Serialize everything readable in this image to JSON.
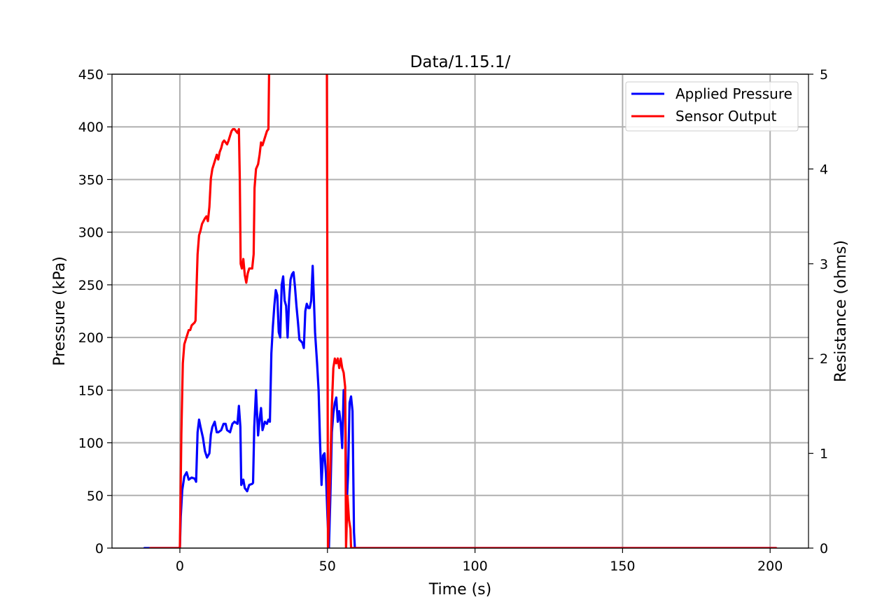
{
  "chart_data": {
    "type": "line",
    "title": "Data/1.15.1/",
    "xlabel": "Time (s)",
    "ylabel": "Pressure (kPa)",
    "y2label": "Resistance (ohms)",
    "xlim": [
      -23,
      213
    ],
    "ylim": [
      0,
      450
    ],
    "y2lim": [
      0,
      5
    ],
    "xticks": [
      0,
      50,
      100,
      150,
      200
    ],
    "yticks": [
      0,
      50,
      100,
      150,
      200,
      250,
      300,
      350,
      400,
      450
    ],
    "y2ticks": [
      0,
      1,
      2,
      3,
      4,
      5
    ],
    "grid": true,
    "legend_position": "top-right",
    "series": [
      {
        "name": "Applied Pressure",
        "axis": "left",
        "color": "#0000ff",
        "points": [
          [
            -12,
            0
          ],
          [
            0,
            0
          ],
          [
            0.3,
            30
          ],
          [
            0.8,
            55
          ],
          [
            1.5,
            68
          ],
          [
            2.3,
            72
          ],
          [
            3,
            65
          ],
          [
            4,
            67
          ],
          [
            5,
            66
          ],
          [
            5.5,
            63
          ],
          [
            6,
            110
          ],
          [
            6.5,
            122
          ],
          [
            7,
            115
          ],
          [
            7.8,
            105
          ],
          [
            8.5,
            92
          ],
          [
            9.2,
            86
          ],
          [
            10,
            90
          ],
          [
            10.5,
            108
          ],
          [
            11,
            115
          ],
          [
            11.8,
            120
          ],
          [
            12.5,
            110
          ],
          [
            13,
            110
          ],
          [
            14,
            112
          ],
          [
            14.8,
            118
          ],
          [
            15.5,
            118
          ],
          [
            16,
            112
          ],
          [
            17,
            110
          ],
          [
            17.8,
            118
          ],
          [
            18.5,
            120
          ],
          [
            19.5,
            118
          ],
          [
            20,
            135
          ],
          [
            20.5,
            115
          ],
          [
            20.8,
            60
          ],
          [
            21.5,
            65
          ],
          [
            22,
            57
          ],
          [
            22.8,
            54
          ],
          [
            23.5,
            60
          ],
          [
            24.5,
            61
          ],
          [
            24.8,
            62
          ],
          [
            25.2,
            115
          ],
          [
            25.8,
            150
          ],
          [
            26.2,
            125
          ],
          [
            26.5,
            107
          ],
          [
            27,
            122
          ],
          [
            27.5,
            133
          ],
          [
            28,
            112
          ],
          [
            28.8,
            120
          ],
          [
            29.5,
            118
          ],
          [
            30,
            122
          ],
          [
            30.5,
            120
          ],
          [
            31,
            185
          ],
          [
            31.5,
            210
          ],
          [
            32,
            230
          ],
          [
            32.5,
            245
          ],
          [
            33,
            240
          ],
          [
            33.5,
            205
          ],
          [
            34,
            200
          ],
          [
            34.5,
            250
          ],
          [
            35,
            258
          ],
          [
            35.5,
            235
          ],
          [
            36,
            230
          ],
          [
            36.5,
            200
          ],
          [
            37,
            235
          ],
          [
            37.5,
            255
          ],
          [
            38,
            260
          ],
          [
            38.5,
            262
          ],
          [
            39,
            248
          ],
          [
            39.5,
            230
          ],
          [
            40,
            215
          ],
          [
            40.5,
            198
          ],
          [
            41.5,
            195
          ],
          [
            42,
            190
          ],
          [
            42.5,
            225
          ],
          [
            43,
            232
          ],
          [
            43.5,
            228
          ],
          [
            44,
            228
          ],
          [
            44.5,
            235
          ],
          [
            45,
            268
          ],
          [
            45.3,
            245
          ],
          [
            45.8,
            205
          ],
          [
            46.5,
            175
          ],
          [
            47,
            150
          ],
          [
            47.5,
            100
          ],
          [
            48,
            60
          ],
          [
            48.5,
            88
          ],
          [
            49,
            90
          ],
          [
            49.5,
            70
          ],
          [
            50,
            30
          ],
          [
            50.5,
            0
          ],
          [
            51,
            50
          ],
          [
            51.5,
            110
          ],
          [
            52,
            128
          ],
          [
            52.5,
            138
          ],
          [
            53,
            143
          ],
          [
            53.5,
            120
          ],
          [
            54,
            130
          ],
          [
            54.5,
            118
          ],
          [
            55,
            95
          ],
          [
            55.5,
            150
          ],
          [
            56,
            140
          ],
          [
            56.5,
            40
          ],
          [
            57,
            70
          ],
          [
            57.5,
            138
          ],
          [
            58,
            144
          ],
          [
            58.5,
            130
          ],
          [
            59,
            15
          ],
          [
            59.3,
            0
          ],
          [
            202,
            0
          ]
        ]
      },
      {
        "name": "Sensor Output",
        "axis": "right",
        "color": "#ff0000",
        "points": [
          [
            -10,
            0
          ],
          [
            0,
            0
          ],
          [
            0.5,
            1.2
          ],
          [
            1,
            1.95
          ],
          [
            1.5,
            2.15
          ],
          [
            2,
            2.2
          ],
          [
            2.5,
            2.25
          ],
          [
            3,
            2.3
          ],
          [
            3.5,
            2.3
          ],
          [
            4,
            2.35
          ],
          [
            5,
            2.38
          ],
          [
            5.3,
            2.4
          ],
          [
            5.5,
            2.6
          ],
          [
            6,
            3.1
          ],
          [
            6.5,
            3.3
          ],
          [
            7,
            3.35
          ],
          [
            7.5,
            3.42
          ],
          [
            8,
            3.45
          ],
          [
            8.5,
            3.48
          ],
          [
            9,
            3.5
          ],
          [
            9.5,
            3.45
          ],
          [
            10,
            3.6
          ],
          [
            10.5,
            3.9
          ],
          [
            11,
            4.0
          ],
          [
            11.5,
            4.05
          ],
          [
            12,
            4.1
          ],
          [
            12.5,
            4.15
          ],
          [
            13,
            4.1
          ],
          [
            13.5,
            4.18
          ],
          [
            14,
            4.22
          ],
          [
            14.5,
            4.28
          ],
          [
            15,
            4.3
          ],
          [
            15.5,
            4.28
          ],
          [
            16,
            4.26
          ],
          [
            16.5,
            4.3
          ],
          [
            17,
            4.35
          ],
          [
            17.5,
            4.4
          ],
          [
            18,
            4.42
          ],
          [
            18.5,
            4.42
          ],
          [
            19,
            4.4
          ],
          [
            19.5,
            4.38
          ],
          [
            20,
            4.42
          ],
          [
            20.3,
            3.9
          ],
          [
            20.6,
            3.0
          ],
          [
            21,
            2.95
          ],
          [
            21.5,
            3.05
          ],
          [
            22,
            2.88
          ],
          [
            22.5,
            2.8
          ],
          [
            23,
            2.9
          ],
          [
            23.5,
            2.95
          ],
          [
            24,
            2.95
          ],
          [
            24.5,
            2.95
          ],
          [
            25,
            3.1
          ],
          [
            25.3,
            3.8
          ],
          [
            25.8,
            4.0
          ],
          [
            26.5,
            4.05
          ],
          [
            27,
            4.15
          ],
          [
            27.5,
            4.28
          ],
          [
            28,
            4.25
          ],
          [
            28.5,
            4.3
          ],
          [
            29,
            4.35
          ],
          [
            29.5,
            4.4
          ],
          [
            30,
            4.42
          ],
          [
            30.3,
            5.2
          ],
          [
            49.8,
            5.2
          ],
          [
            50,
            2.5
          ],
          [
            50.2,
            0
          ],
          [
            51,
            0.9
          ],
          [
            51.5,
            1.5
          ],
          [
            52,
            1.9
          ],
          [
            52.5,
            2.0
          ],
          [
            53,
            1.95
          ],
          [
            53.5,
            2.0
          ],
          [
            54,
            1.9
          ],
          [
            54.5,
            2.0
          ],
          [
            55,
            1.9
          ],
          [
            55.5,
            1.85
          ],
          [
            56,
            1.7
          ],
          [
            56.3,
            0
          ],
          [
            56.8,
            0.55
          ],
          [
            57.3,
            0.3
          ],
          [
            57.8,
            0.2
          ],
          [
            58,
            0
          ],
          [
            202,
            0
          ]
        ]
      }
    ]
  }
}
